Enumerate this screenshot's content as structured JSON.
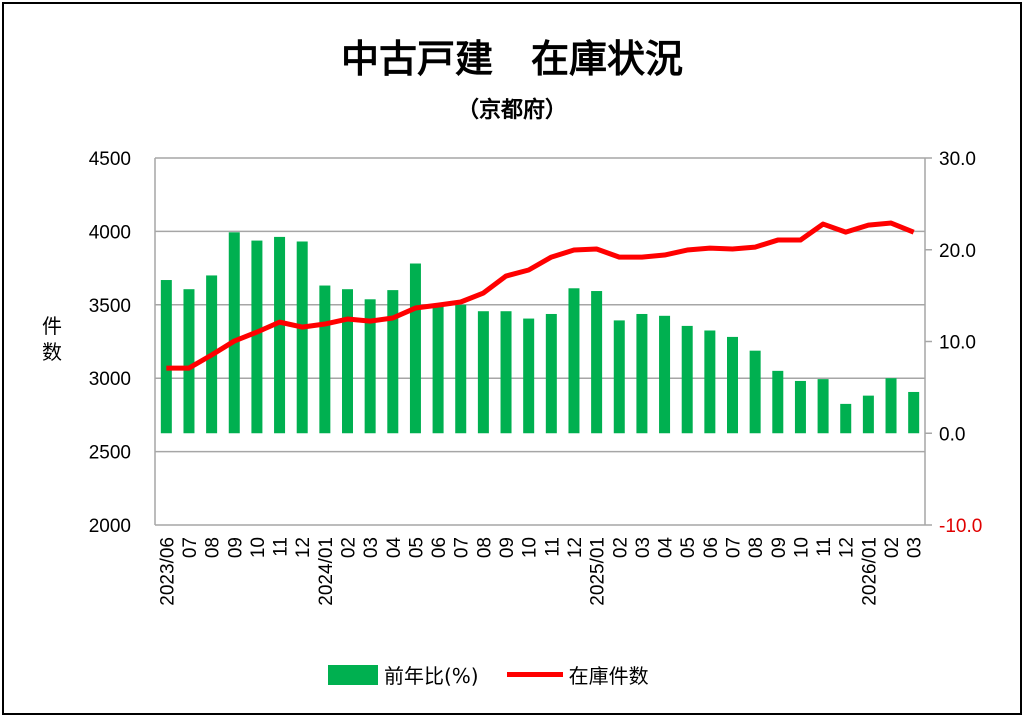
{
  "chart_data": {
    "type": "bar+line",
    "title": "中古戸建　在庫状況",
    "subtitle": "（京都府）",
    "ylabel": "件数",
    "ylim": [
      2000,
      4500
    ],
    "yticks": [
      "4500",
      "4000",
      "3500",
      "3000",
      "2500",
      "2000"
    ],
    "y2lim": [
      -10,
      30
    ],
    "y2ticks": [
      "30.0",
      "20.0",
      "10.0",
      "0.0",
      "-10.0"
    ],
    "grid": true,
    "legend_position": "bottom",
    "categories": [
      "2023/06",
      "07",
      "08",
      "09",
      "10",
      "11",
      "12",
      "2024/01",
      "02",
      "03",
      "04",
      "05",
      "06",
      "07",
      "08",
      "09",
      "10",
      "11",
      "12",
      "2025/01",
      "02",
      "03",
      "04",
      "05",
      "06",
      "07",
      "08",
      "09",
      "10",
      "11",
      "12",
      "2026/01",
      "02",
      "03"
    ],
    "series": [
      {
        "name": "前年比(%)",
        "type": "bar",
        "axis": "right",
        "color": "#00b050",
        "values": [
          16.7,
          15.7,
          17.2,
          21.9,
          21.0,
          21.4,
          20.9,
          16.1,
          15.7,
          14.6,
          15.6,
          18.5,
          14.0,
          14.0,
          13.3,
          13.3,
          12.5,
          13.0,
          15.8,
          15.5,
          12.3,
          13.0,
          12.8,
          11.7,
          11.2,
          10.5,
          9.0,
          6.8,
          5.7,
          5.9,
          3.2,
          4.1,
          6.0,
          4.5
        ]
      },
      {
        "name": "在庫件数",
        "type": "line",
        "axis": "left",
        "color": "#ff0000",
        "values": [
          3069,
          3069,
          3158,
          3253,
          3314,
          3382,
          3348,
          3369,
          3403,
          3389,
          3410,
          3478,
          3498,
          3519,
          3580,
          3696,
          3737,
          3825,
          3873,
          3880,
          3825,
          3825,
          3839,
          3873,
          3886,
          3880,
          3893,
          3941,
          3941,
          4050,
          3995,
          4043,
          4057,
          3995
        ]
      }
    ]
  }
}
